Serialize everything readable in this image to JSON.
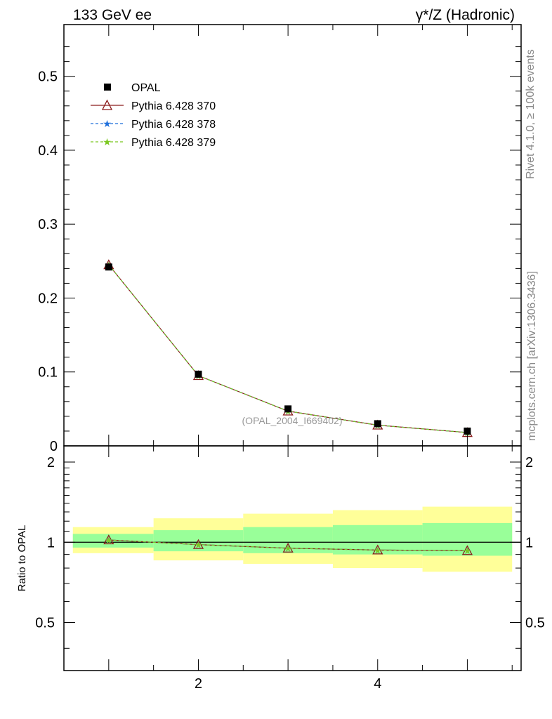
{
  "header": {
    "left_title": "133 GeV ee",
    "right_title": "γ*/Z (Hadronic)"
  },
  "side_labels": {
    "rivet": "Rivet 4.1.0, ≥ 100k events",
    "mcplots": "mcplots.cern.ch [arXiv:1306.3436]"
  },
  "watermark": "(OPAL_2004_I669402)",
  "legend": {
    "items": [
      "OPAL",
      "Pythia 6.428 370",
      "Pythia 6.428 378",
      "Pythia 6.428 379"
    ]
  },
  "colors": {
    "data": "#000000",
    "p370": "#8b1a1a",
    "p378": "#1e6fdb",
    "p379": "#7bc820",
    "band_inner": "#99ff99",
    "band_outer": "#ffff99"
  },
  "chart_data": [
    {
      "type": "line",
      "panel": "main",
      "title": "γ*/Z (Hadronic)",
      "xlabel": "",
      "ylabel": "",
      "xlim": [
        0.5,
        5.6
      ],
      "ylim": [
        0,
        0.57
      ],
      "yticks": [
        0,
        0.1,
        0.2,
        0.3,
        0.4,
        0.5
      ],
      "ytick_labels": [
        "0",
        "0.1",
        "0.2",
        "0.3",
        "0.4",
        "0.5"
      ],
      "x": [
        1,
        2,
        3,
        4,
        5
      ],
      "series": [
        {
          "name": "OPAL",
          "values": [
            0.242,
            0.097,
            0.05,
            0.03,
            0.02
          ]
        },
        {
          "name": "Pythia 6.428 370",
          "values": [
            0.245,
            0.095,
            0.047,
            0.028,
            0.018
          ]
        },
        {
          "name": "Pythia 6.428 378",
          "values": [
            0.245,
            0.095,
            0.047,
            0.028,
            0.018
          ]
        },
        {
          "name": "Pythia 6.428 379",
          "values": [
            0.245,
            0.095,
            0.047,
            0.028,
            0.018
          ]
        }
      ]
    },
    {
      "type": "line",
      "panel": "ratio",
      "ylabel": "Ratio to OPAL",
      "xlim": [
        0.5,
        5.6
      ],
      "ylim": [
        0.33,
        2.3
      ],
      "yscale": "log",
      "yticks": [
        0.5,
        1,
        2
      ],
      "ytick_labels": [
        "0.5",
        "1",
        "2"
      ],
      "xticks": [
        2,
        4
      ],
      "xtick_labels": [
        "2",
        "4"
      ],
      "x": [
        1,
        2,
        3,
        4,
        5
      ],
      "bins": [
        [
          0.6,
          1.5
        ],
        [
          1.5,
          2.5
        ],
        [
          2.5,
          3.5
        ],
        [
          3.5,
          4.5
        ],
        [
          4.5,
          5.5
        ]
      ],
      "band_inner": [
        [
          0.955,
          1.075
        ],
        [
          0.925,
          1.11
        ],
        [
          0.91,
          1.14
        ],
        [
          0.9,
          1.16
        ],
        [
          0.89,
          1.18
        ]
      ],
      "band_outer": [
        [
          0.91,
          1.14
        ],
        [
          0.855,
          1.23
        ],
        [
          0.83,
          1.28
        ],
        [
          0.8,
          1.32
        ],
        [
          0.775,
          1.36
        ]
      ],
      "series": [
        {
          "name": "Pythia 6.428 370",
          "values": [
            1.02,
            0.98,
            0.95,
            0.935,
            0.93
          ]
        },
        {
          "name": "Pythia 6.428 378",
          "values": [
            1.02,
            0.98,
            0.95,
            0.935,
            0.93
          ]
        },
        {
          "name": "Pythia 6.428 379",
          "values": [
            1.02,
            0.98,
            0.95,
            0.935,
            0.93
          ]
        }
      ]
    }
  ]
}
